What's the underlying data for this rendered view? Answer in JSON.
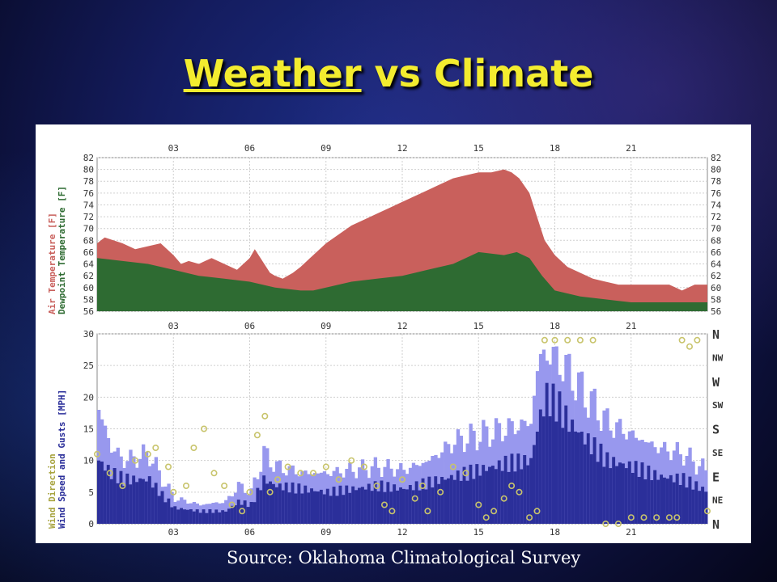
{
  "slide": {
    "title_link": "Weather",
    "title_rest": " vs Climate",
    "source": "Source: Oklahoma Climatological Survey"
  },
  "colors": {
    "air_temperature": "#c9605c",
    "dewpoint_temperature": "#2e6b32",
    "wind_gust": "#9898ee",
    "wind_speed": "#2b2f9a",
    "wind_direction": "#c8c46c",
    "title": "#f3ec2f"
  },
  "chart_data": [
    {
      "type": "area",
      "x_ticks": [
        "03",
        "06",
        "09",
        "12",
        "15",
        "18",
        "21"
      ],
      "x_tick_hours": [
        3,
        6,
        9,
        12,
        15,
        18,
        21
      ],
      "xlim": [
        0,
        24
      ],
      "ylim": [
        56,
        82
      ],
      "y_ticks": [
        56,
        58,
        60,
        62,
        64,
        66,
        68,
        70,
        72,
        74,
        76,
        78,
        80,
        82
      ],
      "ylabel_top": "Air Temperature [F]",
      "ylabel_bottom": "Dewpoint Temperature [F]",
      "grid": true,
      "series": [
        {
          "name": "Air Temperature [F]",
          "x": [
            0,
            0.3,
            1,
            1.5,
            2,
            2.5,
            3,
            3.3,
            3.6,
            4,
            4.5,
            5,
            5.5,
            6,
            6.2,
            6.5,
            6.8,
            7,
            7.3,
            7.7,
            8,
            8.5,
            9,
            9.5,
            10,
            10.5,
            11,
            11.5,
            12,
            12.5,
            13,
            13.5,
            14,
            14.5,
            15,
            15.5,
            16,
            16.3,
            16.6,
            17,
            17.3,
            17.6,
            18,
            18.5,
            19,
            19.5,
            20,
            20.5,
            21,
            21.5,
            22,
            22.5,
            23,
            23.5,
            24
          ],
          "y": [
            67.5,
            68.5,
            67.5,
            66.5,
            67,
            67.5,
            65.5,
            64,
            64.5,
            64,
            65,
            64,
            63,
            65,
            66.5,
            64.5,
            62.5,
            62,
            61.5,
            62.5,
            63.5,
            65.5,
            67.5,
            69,
            70.5,
            71.5,
            72.5,
            73.5,
            74.5,
            75.5,
            76.5,
            77.5,
            78.5,
            79,
            79.5,
            79.5,
            80,
            79.5,
            78.5,
            76,
            72,
            68,
            65.5,
            63.5,
            62.5,
            61.5,
            61,
            60.5,
            60.5,
            60.5,
            60.5,
            60.5,
            59.5,
            60.5,
            60.5
          ]
        },
        {
          "name": "Dewpoint Temperature [F]",
          "x": [
            0,
            1,
            2,
            3,
            4,
            5,
            6,
            7,
            8,
            8.5,
            9,
            10,
            11,
            12,
            13,
            14,
            14.5,
            15,
            16,
            16.5,
            17,
            17.5,
            18,
            19,
            20,
            21,
            22,
            23,
            24
          ],
          "y": [
            65,
            64.5,
            64,
            63,
            62,
            61.5,
            61,
            60,
            59.5,
            59.5,
            60,
            61,
            61.5,
            62,
            63,
            64,
            65,
            66,
            65.5,
            66,
            65,
            62,
            59.5,
            58.5,
            58,
            57.5,
            57.5,
            57.5,
            57.5
          ]
        }
      ]
    },
    {
      "type": "bar",
      "x_ticks": [
        "03",
        "06",
        "09",
        "12",
        "15",
        "18",
        "21"
      ],
      "x_tick_hours": [
        3,
        6,
        9,
        12,
        15,
        18,
        21
      ],
      "xlim": [
        0,
        24
      ],
      "ylim": [
        0,
        30
      ],
      "y_ticks": [
        0,
        5,
        10,
        15,
        20,
        25,
        30
      ],
      "direction_ticks": [
        "N",
        "NE",
        "E",
        "SE",
        "S",
        "SW",
        "W",
        "NW",
        "N"
      ],
      "ylabel_top": "Wind Direction",
      "ylabel_bottom": "Wind Speed and Gusts [MPH]",
      "grid": true,
      "series": [
        {
          "name": "Wind Gusts [MPH]",
          "x": [
            0,
            0.5,
            1,
            2,
            2.5,
            3,
            4,
            5,
            5.5,
            6,
            6.5,
            7,
            8,
            9,
            10,
            11,
            12,
            13,
            14,
            15,
            16,
            17,
            17.3,
            17.6,
            18,
            18.5,
            19,
            20,
            21,
            22,
            23,
            24
          ],
          "y": [
            18,
            12,
            10,
            11,
            7,
            4,
            3,
            3.5,
            6,
            5,
            11,
            9,
            8,
            8,
            8.5,
            9,
            8.5,
            10,
            13,
            14,
            15,
            16,
            26,
            27,
            26,
            24,
            21,
            16,
            14,
            12,
            11,
            8
          ]
        },
        {
          "name": "Wind Speed [MPH]",
          "x": [
            0,
            0.5,
            1,
            2,
            2.5,
            3,
            4,
            5,
            5.5,
            6,
            6.5,
            7,
            8,
            9,
            10,
            11,
            12,
            13,
            14,
            15,
            16,
            17,
            17.3,
            17.6,
            18,
            18.5,
            19,
            20,
            21,
            22,
            23,
            24
          ],
          "y": [
            10,
            8,
            7,
            7,
            4.5,
            2.5,
            2,
            2,
            3.5,
            3,
            7,
            6,
            5.5,
            5,
            5.5,
            6,
            5.5,
            6.5,
            7.5,
            8.5,
            9.5,
            10,
            16,
            20,
            19,
            16,
            14,
            10,
            9,
            7.5,
            7,
            5
          ]
        },
        {
          "name": "Wind Direction",
          "x": [
            0,
            0.5,
            1,
            1.5,
            2,
            2.3,
            2.8,
            3,
            3.5,
            3.8,
            4.2,
            4.6,
            5,
            5.3,
            5.7,
            6,
            6.3,
            6.6,
            6.8,
            7.1,
            7.5,
            8,
            8.5,
            9,
            9.5,
            10,
            10.5,
            11,
            11.3,
            11.6,
            12,
            12.5,
            12.8,
            13,
            13.5,
            14,
            14.5,
            15,
            15.3,
            15.6,
            16,
            16.3,
            16.6,
            17,
            17.3,
            17.6,
            18,
            18.5,
            19,
            19.5,
            20,
            20.5,
            21,
            21.5,
            22,
            22.5,
            22.8,
            23,
            23.3,
            23.6,
            24
          ],
          "y": [
            11,
            8,
            6,
            10,
            11,
            12,
            9,
            5,
            6,
            12,
            15,
            8,
            6,
            3,
            2,
            5,
            14,
            17,
            5,
            7,
            9,
            8,
            8,
            9,
            7,
            10,
            9,
            6,
            3,
            2,
            7,
            4,
            6,
            2,
            5,
            9,
            8,
            3,
            1,
            2,
            4,
            6,
            5,
            1,
            2,
            29,
            29,
            29,
            29,
            29,
            0,
            0,
            1,
            1,
            1,
            1,
            1,
            29,
            28,
            29,
            2
          ]
        }
      ]
    }
  ]
}
